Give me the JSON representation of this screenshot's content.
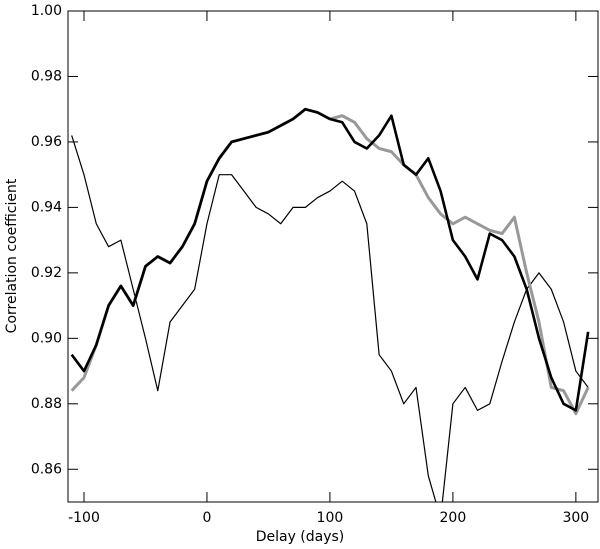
{
  "chart_data": {
    "type": "line",
    "x_label": "Delay (days)",
    "y_label": "Correlation coefficient",
    "x": [
      -110,
      -100,
      -90,
      -80,
      -70,
      -60,
      -50,
      -40,
      -30,
      -20,
      -10,
      0,
      10,
      20,
      30,
      40,
      50,
      60,
      70,
      80,
      90,
      100,
      110,
      120,
      130,
      140,
      150,
      160,
      170,
      180,
      190,
      200,
      210,
      220,
      230,
      240,
      250,
      260,
      270,
      280,
      290,
      300,
      310
    ],
    "series": [
      {
        "color": "#000000",
        "width": 1.2,
        "values": [
          0.962,
          0.95,
          0.935,
          0.928,
          0.93,
          0.915,
          0.9,
          0.884,
          0.905,
          0.91,
          0.915,
          0.935,
          0.95,
          0.95,
          0.945,
          0.94,
          0.938,
          0.935,
          0.94,
          0.94,
          0.943,
          0.945,
          0.948,
          0.945,
          0.935,
          0.895,
          0.89,
          0.88,
          0.885,
          0.858,
          0.845,
          0.88,
          0.885,
          0.878,
          0.88,
          0.893,
          0.905,
          0.915,
          0.92,
          0.915,
          0.905,
          0.89,
          0.885
        ]
      },
      {
        "color": "#999999",
        "width": 3,
        "values": [
          0.884,
          0.888,
          0.898,
          0.91,
          0.916,
          0.91,
          0.922,
          0.925,
          0.923,
          0.928,
          0.935,
          0.948,
          0.955,
          0.96,
          0.961,
          0.962,
          0.963,
          0.965,
          0.967,
          0.97,
          0.969,
          0.967,
          0.968,
          0.966,
          0.961,
          0.958,
          0.957,
          0.953,
          0.95,
          0.943,
          0.938,
          0.935,
          0.937,
          0.935,
          0.933,
          0.932,
          0.937,
          0.92,
          0.905,
          0.885,
          0.884,
          0.877,
          0.885
        ]
      },
      {
        "color": "#000000",
        "width": 2.6,
        "values": [
          0.895,
          0.89,
          0.898,
          0.91,
          0.916,
          0.91,
          0.922,
          0.925,
          0.923,
          0.928,
          0.935,
          0.948,
          0.955,
          0.96,
          0.961,
          0.962,
          0.963,
          0.965,
          0.967,
          0.97,
          0.969,
          0.967,
          0.966,
          0.96,
          0.958,
          0.962,
          0.968,
          0.953,
          0.95,
          0.955,
          0.945,
          0.93,
          0.925,
          0.918,
          0.932,
          0.93,
          0.925,
          0.915,
          0.9,
          0.888,
          0.88,
          0.878,
          0.902
        ]
      }
    ],
    "xlim": [
      -113,
      318
    ],
    "ylim": [
      0.85,
      1.0
    ],
    "xticks": [
      -100,
      0,
      100,
      200,
      300
    ],
    "yticks": [
      0.86,
      0.88,
      {
        "value": 0.9,
        "label": "0.90"
      },
      0.92,
      0.94,
      0.96,
      0.98,
      {
        "value": 1.0,
        "label": "1.00"
      }
    ],
    "grid": false
  }
}
